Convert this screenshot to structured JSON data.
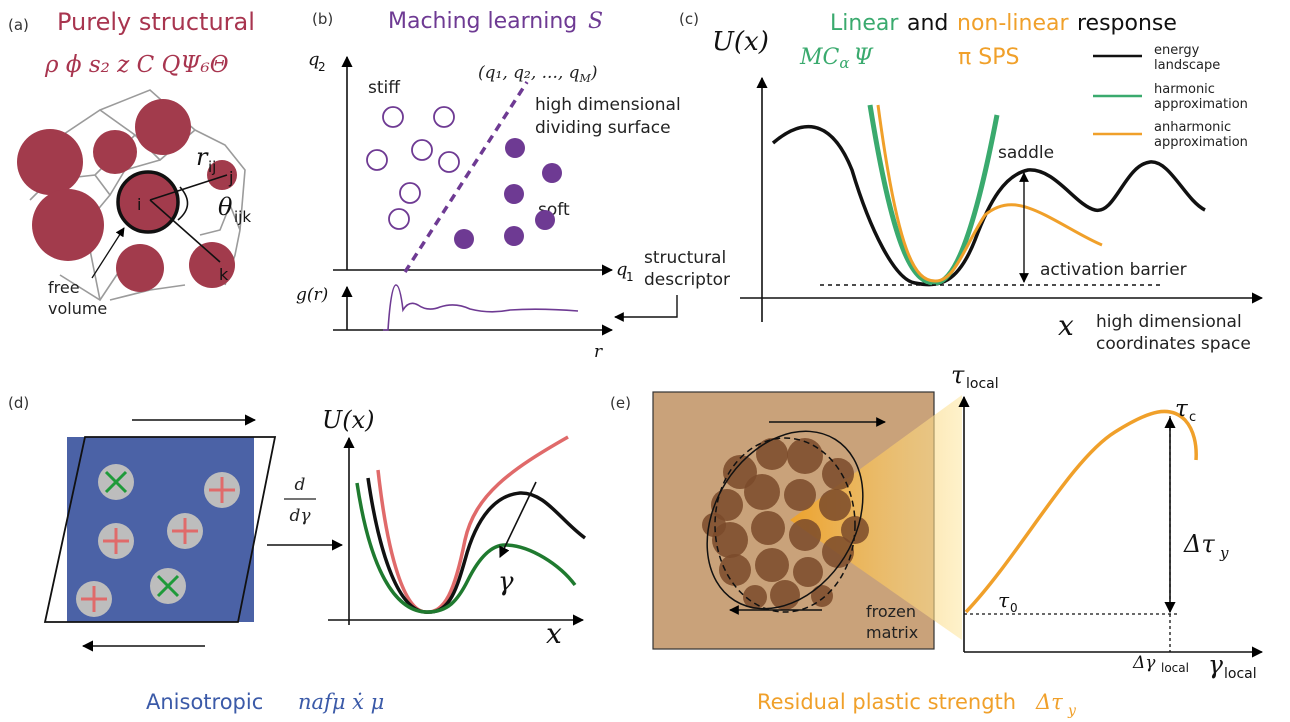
{
  "colors": {
    "crimson": "#a8354f",
    "particle": "#a23b4c",
    "purple": "#6e3a93",
    "green": "#3aaa6e",
    "orange": "#f0a02a",
    "blue": "#3b5aa8",
    "panel_blue": "#4b62a6",
    "tan": "#c9a27a",
    "brown": "#7a4a2a",
    "red_line": "#e06a6a",
    "dark_green": "#1f7a2f"
  },
  "panel_a": {
    "tag": "(a)",
    "title": "Purely structural",
    "symbols": "ρ  ϕ  s₂  z  C  QΨ₆Θ",
    "label_i": "i",
    "label_j": "j",
    "label_k": "k",
    "label_rij": "r",
    "label_rij_sub": "ij",
    "label_theta": "θ",
    "label_theta_sub": "ijk",
    "free_volume_1": "free",
    "free_volume_2": "volume"
  },
  "panel_b": {
    "tag": "(b)",
    "title": "Maching learning",
    "title_symbol": "S",
    "axis_q2": "q",
    "axis_q2_sub": "2",
    "axis_q1": "q",
    "axis_q1_sub": "1",
    "stiff": "stiff",
    "soft": "soft",
    "tuple": "(q₁, q₂, ..., q",
    "tuple_sub": "M",
    "tuple_end": ")",
    "surface_1": "high dimensional",
    "surface_2": "dividing surface",
    "gr_label": "g(r)",
    "r_label": "r",
    "descriptor_1": "structural",
    "descriptor_2": "descriptor"
  },
  "panel_c": {
    "tag": "(c)",
    "title_linear": "Linear",
    "title_and": "and",
    "title_nonlinear": "non-linear",
    "title_response": "response",
    "ux": "U(x)",
    "green_symbols": "MC",
    "green_sub": "α",
    "green_psi": "Ψ",
    "orange_symbols": "π SPS",
    "legend_energy_1": "energy",
    "legend_energy_2": "landscape",
    "legend_harm_1": "harmonic",
    "legend_harm_2": "approximation",
    "legend_anharm_1": "anharmonic",
    "legend_anharm_2": "approximation",
    "saddle": "saddle",
    "activation": "activation barrier",
    "x_label": "x",
    "coords_1": "high dimensional",
    "coords_2": "coordinates space"
  },
  "panel_d": {
    "tag": "(d)",
    "deriv_num": "d",
    "deriv_den": "dγ",
    "ux": "U(x)",
    "gamma": "γ",
    "x_label": "x",
    "caption": "Anisotropic",
    "caption_symbols": "nafμ  ẋ  μ"
  },
  "panel_e": {
    "tag": "(e)",
    "tau_local": "τ",
    "tau_local_sub": "local",
    "tau_c": "τ",
    "tau_c_sub": "c",
    "delta_tau": "Δτ",
    "delta_tau_sub": "y",
    "tau_0": "τ",
    "tau_0_sub": "0",
    "delta_gamma": "Δγ",
    "delta_gamma_sub": "local",
    "gamma_local": "γ",
    "gamma_local_sub": "local",
    "frozen_1": "frozen",
    "frozen_2": "matrix",
    "caption": "Residual plastic strength",
    "caption_symbol": "Δτ",
    "caption_sub": "y"
  }
}
